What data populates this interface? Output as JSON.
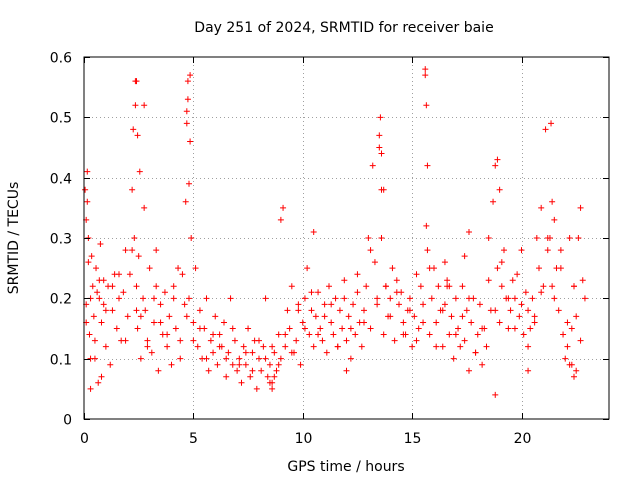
{
  "chart_data": {
    "type": "scatter",
    "title": "Day 251 of 2024, SRMTID for receiver baie",
    "xlabel": "GPS time / hours",
    "ylabel": "SRMTID / TECUs",
    "xlim": [
      0,
      24
    ],
    "ylim": [
      0,
      0.6
    ],
    "x_ticks": [
      0,
      5,
      10,
      15,
      20
    ],
    "x_tick_labels": [
      "0",
      "5",
      "10",
      "15",
      "20"
    ],
    "y_ticks": [
      0,
      0.1,
      0.2,
      0.3,
      0.4,
      0.5,
      0.6
    ],
    "y_tick_labels": [
      "0",
      "0.1",
      "0.2",
      "0.3",
      "0.4",
      "0.5",
      "0.6"
    ],
    "grid": true,
    "marker": "plus",
    "color": "#ff0000",
    "series": [
      {
        "name": "SRMTID",
        "x": [
          0.05,
          0.1,
          0.15,
          0.2,
          0.25,
          0.3,
          0.35,
          0.4,
          0.45,
          0.5,
          0.55,
          0.6,
          0.65,
          0.7,
          0.75,
          0.8,
          0.9,
          1.0,
          1.1,
          1.2,
          1.3,
          1.4,
          1.5,
          1.6,
          1.7,
          1.8,
          1.9,
          2.0,
          2.1,
          2.2,
          2.25,
          2.3,
          2.35,
          2.4,
          2.45,
          2.5,
          2.6,
          2.7,
          2.75,
          2.8,
          2.9,
          3.0,
          3.1,
          3.2,
          3.3,
          3.4,
          3.5,
          3.6,
          3.7,
          3.8,
          3.9,
          4.0,
          4.1,
          4.2,
          4.3,
          4.4,
          4.5,
          4.6,
          4.65,
          4.7,
          4.75,
          4.8,
          4.85,
          4.9,
          5.0,
          5.1,
          5.2,
          5.3,
          5.4,
          5.5,
          5.6,
          5.7,
          5.8,
          5.9,
          6.0,
          6.1,
          6.2,
          6.3,
          6.4,
          6.5,
          6.6,
          6.7,
          6.8,
          6.9,
          7.0,
          7.1,
          7.2,
          7.3,
          7.4,
          7.5,
          7.6,
          7.7,
          7.8,
          7.9,
          8.0,
          8.1,
          8.2,
          8.3,
          8.4,
          8.5,
          8.6,
          8.7,
          8.8,
          8.9,
          9.0,
          9.1,
          9.2,
          9.3,
          9.4,
          9.5,
          9.6,
          9.7,
          9.8,
          9.9,
          10.0,
          10.1,
          10.2,
          10.3,
          10.4,
          10.5,
          10.6,
          10.7,
          10.8,
          10.9,
          11.0,
          11.1,
          11.2,
          11.3,
          11.4,
          11.5,
          11.6,
          11.7,
          11.8,
          11.9,
          12.0,
          12.1,
          12.2,
          12.3,
          12.4,
          12.5,
          12.6,
          12.7,
          12.8,
          12.9,
          13.0,
          13.1,
          13.2,
          13.3,
          13.4,
          13.5,
          13.6,
          13.7,
          13.8,
          13.9,
          14.0,
          14.1,
          14.2,
          14.3,
          14.4,
          14.5,
          14.6,
          14.7,
          14.8,
          14.9,
          15.0,
          15.1,
          15.2,
          15.3,
          15.4,
          15.5,
          15.6,
          15.65,
          15.7,
          15.8,
          15.9,
          16.0,
          16.1,
          16.2,
          16.3,
          16.4,
          16.5,
          16.6,
          16.7,
          16.8,
          16.9,
          17.0,
          17.1,
          17.2,
          17.3,
          17.4,
          17.5,
          17.6,
          17.7,
          17.8,
          17.9,
          18.0,
          18.1,
          18.2,
          18.3,
          18.4,
          18.5,
          18.6,
          18.7,
          18.8,
          18.9,
          19.0,
          19.1,
          19.2,
          19.3,
          19.4,
          19.5,
          19.6,
          19.7,
          19.8,
          19.9,
          20.0,
          20.1,
          20.2,
          20.3,
          20.4,
          20.5,
          20.6,
          20.7,
          20.8,
          20.9,
          21.0,
          21.1,
          21.2,
          21.3,
          21.4,
          21.5,
          21.6,
          21.7,
          21.8,
          21.9,
          22.0,
          22.1,
          22.2,
          22.3,
          22.4,
          22.5,
          22.6,
          22.7,
          22.8,
          22.9,
          0.1,
          0.3,
          0.5,
          0.7,
          1.0,
          1.3,
          1.6,
          1.9,
          2.2,
          2.4,
          2.6,
          2.9,
          3.2,
          3.5,
          3.8,
          4.1,
          4.4,
          4.7,
          5.0,
          5.3,
          5.6,
          5.9,
          6.2,
          6.5,
          6.8,
          7.1,
          7.4,
          7.7,
          8.0,
          8.3,
          8.6,
          8.9,
          9.2,
          9.5,
          9.8,
          10.1,
          10.4,
          10.7,
          11.0,
          11.3,
          11.6,
          11.9,
          12.2,
          12.5,
          12.8,
          13.1,
          13.4,
          13.6,
          13.8,
          14.0,
          14.3,
          14.6,
          14.9,
          15.2,
          15.5,
          15.8,
          16.1,
          16.4,
          16.7,
          17.0,
          17.3,
          17.6,
          17.9,
          18.2,
          18.5,
          18.8,
          19.1,
          19.4,
          19.7,
          20.0,
          20.3,
          20.6,
          20.9,
          21.2,
          21.5,
          21.8,
          22.1,
          22.4,
          22.7,
          2.35,
          2.4,
          2.45,
          2.55,
          2.75,
          4.7,
          4.75,
          4.8,
          4.85,
          13.5,
          13.55,
          13.6,
          13.7,
          15.6,
          15.65,
          15.7,
          21.35,
          21.4,
          18.9,
          19.0,
          0.1,
          0.15,
          0.2,
          0.3,
          0.8,
          0.9,
          3.3,
          8.5,
          8.6,
          8.7,
          9.0,
          10.5,
          12.0,
          18.8,
          20.3,
          22.3,
          22.4,
          22.5,
          22.2,
          16.5,
          16.6,
          17.4,
          17.6
        ],
        "y": [
          0.38,
          0.19,
          0.41,
          0.3,
          0.14,
          0.2,
          0.27,
          0.22,
          0.17,
          0.1,
          0.25,
          0.21,
          0.06,
          0.23,
          0.29,
          0.16,
          0.19,
          0.12,
          0.22,
          0.09,
          0.18,
          0.24,
          0.15,
          0.2,
          0.13,
          0.21,
          0.28,
          0.17,
          0.24,
          0.38,
          0.48,
          0.3,
          0.56,
          0.22,
          0.15,
          0.27,
          0.1,
          0.2,
          0.52,
          0.18,
          0.13,
          0.25,
          0.11,
          0.16,
          0.22,
          0.08,
          0.19,
          0.14,
          0.21,
          0.12,
          0.17,
          0.09,
          0.2,
          0.15,
          0.25,
          0.13,
          0.24,
          0.19,
          0.36,
          0.49,
          0.56,
          0.2,
          0.57,
          0.3,
          0.16,
          0.25,
          0.12,
          0.18,
          0.1,
          0.15,
          0.2,
          0.08,
          0.13,
          0.11,
          0.17,
          0.09,
          0.14,
          0.12,
          0.16,
          0.07,
          0.11,
          0.2,
          0.09,
          0.13,
          0.08,
          0.1,
          0.06,
          0.12,
          0.09,
          0.15,
          0.07,
          0.11,
          0.13,
          0.05,
          0.1,
          0.08,
          0.12,
          0.2,
          0.07,
          0.09,
          0.06,
          0.11,
          0.08,
          0.14,
          0.1,
          0.35,
          0.12,
          0.18,
          0.15,
          0.22,
          0.11,
          0.13,
          0.19,
          0.09,
          0.16,
          0.2,
          0.25,
          0.14,
          0.18,
          0.12,
          0.17,
          0.21,
          0.15,
          0.13,
          0.19,
          0.11,
          0.22,
          0.16,
          0.14,
          0.2,
          0.12,
          0.18,
          0.15,
          0.23,
          0.13,
          0.17,
          0.1,
          0.19,
          0.14,
          0.21,
          0.16,
          0.12,
          0.18,
          0.22,
          0.3,
          0.15,
          0.42,
          0.26,
          0.19,
          0.45,
          0.38,
          0.14,
          0.22,
          0.17,
          0.2,
          0.25,
          0.13,
          0.23,
          0.19,
          0.21,
          0.16,
          0.14,
          0.18,
          0.2,
          0.12,
          0.17,
          0.24,
          0.15,
          0.22,
          0.19,
          0.57,
          0.32,
          0.28,
          0.14,
          0.2,
          0.25,
          0.16,
          0.22,
          0.18,
          0.12,
          0.19,
          0.23,
          0.14,
          0.17,
          0.1,
          0.2,
          0.15,
          0.12,
          0.22,
          0.13,
          0.18,
          0.08,
          0.16,
          0.2,
          0.11,
          0.14,
          0.19,
          0.09,
          0.15,
          0.12,
          0.3,
          0.18,
          0.36,
          0.42,
          0.25,
          0.16,
          0.22,
          0.28,
          0.2,
          0.15,
          0.18,
          0.23,
          0.2,
          0.24,
          0.17,
          0.19,
          0.14,
          0.21,
          0.18,
          0.15,
          0.2,
          0.16,
          0.3,
          0.25,
          0.35,
          0.22,
          0.48,
          0.28,
          0.3,
          0.22,
          0.33,
          0.25,
          0.18,
          0.28,
          0.14,
          0.1,
          0.12,
          0.09,
          0.15,
          0.22,
          0.17,
          0.3,
          0.35,
          0.23,
          0.2,
          0.16,
          0.1,
          0.13,
          0.2,
          0.18,
          0.22,
          0.24,
          0.13,
          0.28,
          0.18,
          0.17,
          0.12,
          0.2,
          0.16,
          0.14,
          0.22,
          0.1,
          0.17,
          0.13,
          0.15,
          0.1,
          0.14,
          0.12,
          0.1,
          0.15,
          0.09,
          0.11,
          0.08,
          0.13,
          0.1,
          0.12,
          0.09,
          0.14,
          0.11,
          0.18,
          0.15,
          0.21,
          0.14,
          0.17,
          0.19,
          0.12,
          0.2,
          0.15,
          0.24,
          0.16,
          0.28,
          0.2,
          0.3,
          0.22,
          0.17,
          0.21,
          0.14,
          0.18,
          0.13,
          0.16,
          0.25,
          0.12,
          0.18,
          0.22,
          0.14,
          0.17,
          0.2,
          0.11,
          0.15,
          0.23,
          0.18,
          0.26,
          0.2,
          0.15,
          0.28,
          0.12,
          0.17,
          0.21,
          0.3,
          0.2,
          0.25,
          0.16,
          0.22,
          0.13,
          0.52,
          0.56,
          0.47,
          0.41,
          0.35,
          0.51,
          0.53,
          0.39,
          0.46,
          0.47,
          0.5,
          0.44,
          0.38,
          0.58,
          0.52,
          0.42,
          0.49,
          0.36,
          0.43,
          0.38,
          0.33,
          0.36,
          0.26,
          0.05,
          0.07,
          0.23,
          0.28,
          0.06,
          0.05,
          0.07,
          0.33,
          0.31,
          0.08,
          0.04,
          0.08,
          0.09,
          0.07,
          0.08,
          0.3,
          0.26,
          0.22,
          0.27,
          0.31
        ]
      }
    ]
  }
}
